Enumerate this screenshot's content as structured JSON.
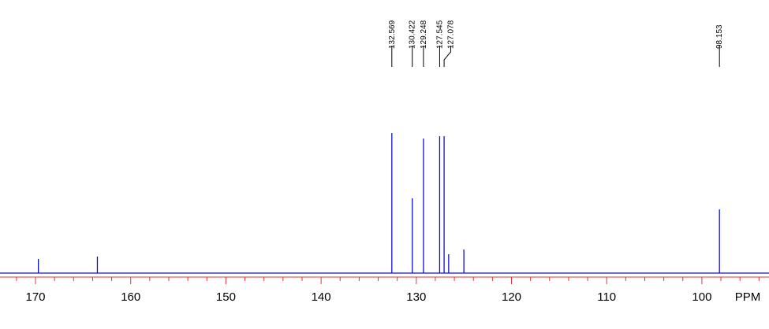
{
  "chart_data": {
    "type": "spectrum",
    "x_label": "PPM",
    "xlim": [
      173.73,
      92.95
    ],
    "ylim": [
      0,
      180
    ],
    "xticks": [
      170,
      160,
      150,
      140,
      130,
      120,
      110,
      100
    ],
    "minor_xticks": [
      172,
      168,
      166,
      164,
      162,
      158,
      156,
      154,
      152,
      148,
      146,
      144,
      142,
      138,
      136,
      134,
      132,
      128,
      126,
      124,
      122,
      118,
      116,
      114,
      112,
      108,
      106,
      104,
      102,
      98,
      96,
      94
    ],
    "axis_color": "#e0343a",
    "color": "#1010c8",
    "peaks": {
      "x": [
        132.569,
        130.422,
        129.248,
        127.545,
        127.078,
        98.153
      ],
      "values": [
        178,
        95,
        171,
        174,
        174,
        81
      ]
    },
    "minor_peaks": {
      "x": [
        169.7,
        163.5,
        126.6,
        125.0
      ],
      "values": [
        18,
        21,
        24,
        30
      ]
    }
  }
}
